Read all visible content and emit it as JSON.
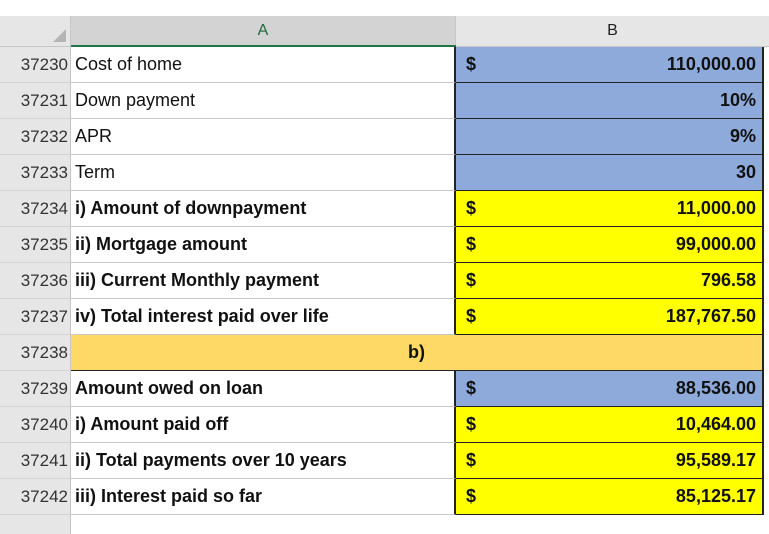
{
  "columns": {
    "a": "A",
    "b": "B"
  },
  "merged_row": {
    "row": "37238",
    "label": "b)"
  },
  "rows": [
    {
      "row": "37230",
      "label": "Cost of home",
      "bold": false,
      "fill": "blue",
      "dollar": "$",
      "value": "110,000.00"
    },
    {
      "row": "37231",
      "label": "Down payment",
      "bold": false,
      "fill": "blue",
      "dollar": "",
      "value": "10%"
    },
    {
      "row": "37232",
      "label": "APR",
      "bold": false,
      "fill": "blue",
      "dollar": "",
      "value": "9%"
    },
    {
      "row": "37233",
      "label": "Term",
      "bold": false,
      "fill": "blue",
      "dollar": "",
      "value": "30"
    },
    {
      "row": "37234",
      "label": "i) Amount of downpayment",
      "bold": true,
      "fill": "yellow",
      "dollar": "$",
      "value": "11,000.00"
    },
    {
      "row": "37235",
      "label": "ii) Mortgage amount",
      "bold": true,
      "fill": "yellow",
      "dollar": "$",
      "value": "99,000.00"
    },
    {
      "row": "37236",
      "label": "iii) Current Monthly payment",
      "bold": true,
      "fill": "yellow",
      "dollar": "$",
      "value": "796.58"
    },
    {
      "row": "37237",
      "label": "iv) Total interest paid over life",
      "bold": true,
      "fill": "yellow",
      "dollar": "$",
      "value": "187,767.50"
    },
    {
      "row": "37239",
      "label": "Amount owed on loan",
      "bold": true,
      "fill": "blue",
      "dollar": "$",
      "value": "88,536.00"
    },
    {
      "row": "37240",
      "label": "i) Amount paid off",
      "bold": true,
      "fill": "yellow",
      "dollar": "$",
      "value": "10,464.00"
    },
    {
      "row": "37241",
      "label": "ii) Total payments over 10 years",
      "bold": true,
      "fill": "yellow",
      "dollar": "$",
      "value": "95,589.17"
    },
    {
      "row": "37242",
      "label": "iii) Interest paid so far",
      "bold": true,
      "fill": "yellow",
      "dollar": "$",
      "value": "85,125.17"
    }
  ]
}
